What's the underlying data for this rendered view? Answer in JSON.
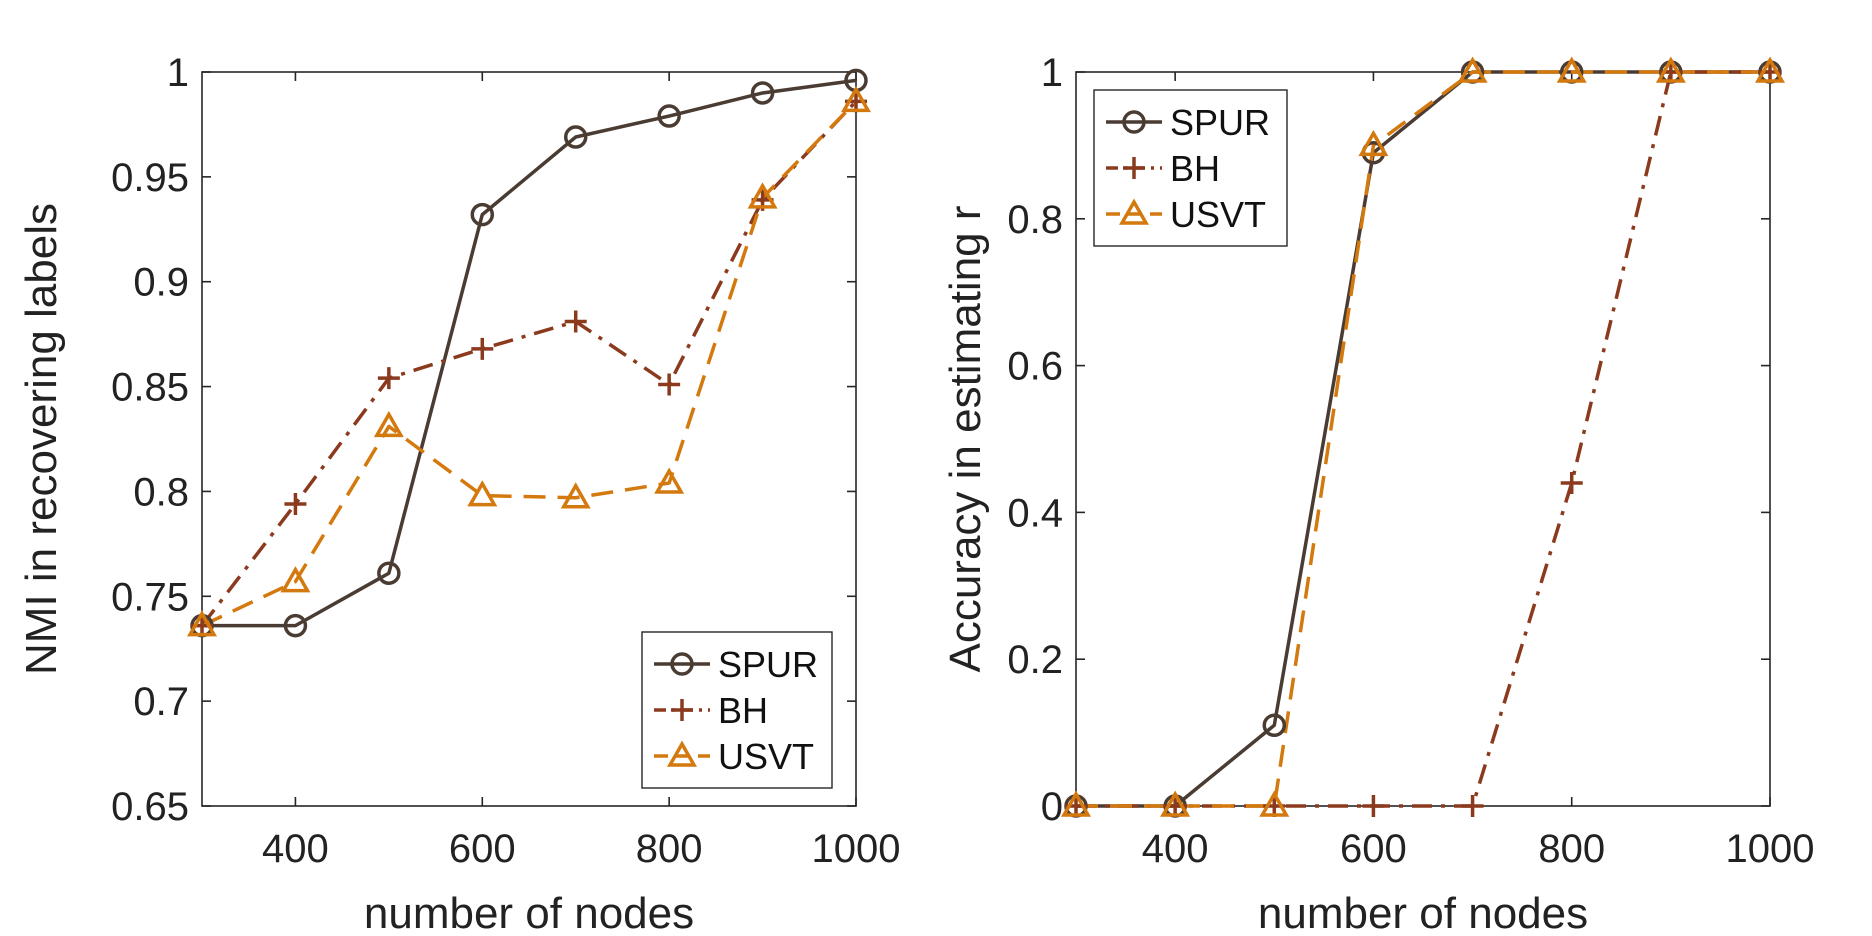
{
  "figure": {
    "background": "#ffffff",
    "axis_color": "#262626"
  },
  "chart_data": [
    {
      "type": "line",
      "title": "",
      "xlabel": "number of nodes",
      "ylabel": "NMI in recovering labels",
      "xlim": [
        300,
        1000
      ],
      "ylim": [
        0.65,
        1
      ],
      "xticks": [
        400,
        600,
        800,
        1000
      ],
      "xtick_labels": [
        "400",
        "600",
        "800",
        "1000"
      ],
      "yticks": [
        0.65,
        0.7,
        0.75,
        0.8,
        0.85,
        0.9,
        0.95,
        1
      ],
      "ytick_labels": [
        "0.65",
        "0.7",
        "0.75",
        "0.8",
        "0.85",
        "0.9",
        "0.95",
        "1"
      ],
      "grid": false,
      "legend_position": "bottom-right",
      "x": [
        300,
        400,
        500,
        600,
        700,
        800,
        900,
        1000
      ],
      "series": [
        {
          "name": "SPUR",
          "color": "#4a3c32",
          "dash": "solid",
          "marker": "circle",
          "values": [
            0.736,
            0.736,
            0.761,
            0.932,
            0.969,
            0.979,
            0.99,
            0.996
          ]
        },
        {
          "name": "BH",
          "color": "#8b3a1e",
          "dash": "dashdot",
          "marker": "plus",
          "values": [
            0.736,
            0.794,
            0.854,
            0.868,
            0.881,
            0.851,
            0.939,
            0.986
          ]
        },
        {
          "name": "USVT",
          "color": "#d4790e",
          "dash": "dashed",
          "marker": "triangle",
          "values": [
            0.736,
            0.757,
            0.831,
            0.798,
            0.797,
            0.804,
            0.94,
            0.986
          ]
        }
      ]
    },
    {
      "type": "line",
      "title": "",
      "xlabel": "number of nodes",
      "ylabel": "Accuracy in estimating r",
      "xlim": [
        300,
        1000
      ],
      "ylim": [
        0,
        1
      ],
      "xticks": [
        400,
        600,
        800,
        1000
      ],
      "xtick_labels": [
        "400",
        "600",
        "800",
        "1000"
      ],
      "yticks": [
        0,
        0.2,
        0.4,
        0.6,
        0.8,
        1
      ],
      "ytick_labels": [
        "0",
        "0.2",
        "0.4",
        "0.6",
        "0.8",
        "1"
      ],
      "grid": false,
      "legend_position": "top-left",
      "x": [
        300,
        400,
        500,
        600,
        700,
        800,
        900,
        1000
      ],
      "series": [
        {
          "name": "SPUR",
          "color": "#4a3c32",
          "dash": "solid",
          "marker": "circle",
          "values": [
            0,
            0,
            0.11,
            0.89,
            1,
            1,
            1,
            1
          ]
        },
        {
          "name": "BH",
          "color": "#8b3a1e",
          "dash": "dashdot",
          "marker": "plus",
          "values": [
            0,
            0,
            0,
            0,
            0,
            0.44,
            1,
            1
          ]
        },
        {
          "name": "USVT",
          "color": "#d4790e",
          "dash": "dashed",
          "marker": "triangle",
          "values": [
            0,
            0,
            0,
            0.9,
            1,
            1,
            1,
            1
          ]
        }
      ]
    }
  ]
}
